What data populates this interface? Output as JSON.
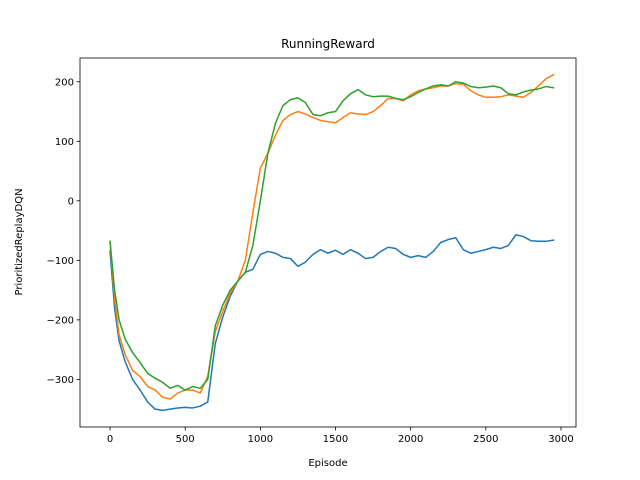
{
  "chart_data": {
    "type": "line",
    "title": "RunningReward",
    "xlabel": "Episode",
    "ylabel": "PrioritizedReplayDQN",
    "xlim": [
      -200,
      3100
    ],
    "ylim": [
      -380,
      240
    ],
    "xticks": [
      0,
      500,
      1000,
      1500,
      2000,
      2500,
      3000
    ],
    "yticks": [
      -300,
      -200,
      -100,
      0,
      100,
      200
    ],
    "xtick_labels": [
      "0",
      "500",
      "1000",
      "1500",
      "2000",
      "2500",
      "3000"
    ],
    "ytick_labels": [
      "−300",
      "−200",
      "−100",
      "0",
      "100",
      "200"
    ],
    "grid": false,
    "series": [
      {
        "color": "#1f77b4",
        "x": [
          0,
          30,
          60,
          100,
          150,
          200,
          250,
          300,
          350,
          400,
          450,
          500,
          550,
          600,
          650,
          700,
          750,
          800,
          850,
          900,
          950,
          1000,
          1050,
          1100,
          1150,
          1200,
          1250,
          1300,
          1350,
          1400,
          1450,
          1500,
          1550,
          1600,
          1650,
          1700,
          1750,
          1800,
          1850,
          1900,
          1950,
          2000,
          2050,
          2100,
          2150,
          2200,
          2250,
          2300,
          2350,
          2400,
          2450,
          2500,
          2550,
          2600,
          2650,
          2700,
          2750,
          2800,
          2850,
          2900,
          2950
        ],
        "y": [
          -85,
          -180,
          -235,
          -270,
          -300,
          -318,
          -338,
          -350,
          -352,
          -350,
          -348,
          -347,
          -348,
          -345,
          -338,
          -240,
          -195,
          -160,
          -135,
          -120,
          -115,
          -90,
          -85,
          -88,
          -95,
          -97,
          -110,
          -103,
          -90,
          -82,
          -88,
          -83,
          -90,
          -82,
          -88,
          -97,
          -95,
          -85,
          -78,
          -80,
          -90,
          -95,
          -92,
          -95,
          -85,
          -70,
          -65,
          -62,
          -82,
          -88,
          -85,
          -82,
          -78,
          -80,
          -75,
          -57,
          -60,
          -67,
          -68,
          -68,
          -66
        ]
      },
      {
        "color": "#ff7f0e",
        "x": [
          0,
          30,
          60,
          100,
          150,
          200,
          250,
          300,
          350,
          400,
          450,
          500,
          550,
          600,
          650,
          700,
          750,
          800,
          850,
          900,
          950,
          1000,
          1050,
          1100,
          1150,
          1200,
          1250,
          1300,
          1350,
          1400,
          1450,
          1500,
          1550,
          1600,
          1650,
          1700,
          1750,
          1800,
          1850,
          1900,
          1950,
          2000,
          2050,
          2100,
          2150,
          2200,
          2250,
          2300,
          2350,
          2400,
          2450,
          2500,
          2550,
          2600,
          2650,
          2700,
          2750,
          2800,
          2850,
          2900,
          2950
        ],
        "y": [
          -70,
          -165,
          -225,
          -258,
          -285,
          -295,
          -312,
          -318,
          -330,
          -333,
          -323,
          -318,
          -318,
          -323,
          -295,
          -220,
          -185,
          -155,
          -135,
          -100,
          -20,
          55,
          80,
          110,
          135,
          145,
          150,
          146,
          140,
          135,
          133,
          131,
          140,
          148,
          146,
          145,
          150,
          160,
          172,
          172,
          168,
          178,
          185,
          188,
          190,
          193,
          193,
          197,
          196,
          185,
          178,
          174,
          174,
          175,
          178,
          176,
          174,
          182,
          193,
          205,
          212
        ]
      },
      {
        "color": "#2ca02c",
        "x": [
          0,
          30,
          60,
          100,
          150,
          200,
          250,
          300,
          350,
          400,
          450,
          500,
          550,
          600,
          650,
          700,
          750,
          800,
          850,
          900,
          950,
          1000,
          1050,
          1100,
          1150,
          1200,
          1250,
          1300,
          1350,
          1400,
          1450,
          1500,
          1550,
          1600,
          1650,
          1700,
          1750,
          1800,
          1850,
          1900,
          1950,
          2000,
          2050,
          2100,
          2150,
          2200,
          2250,
          2300,
          2350,
          2400,
          2450,
          2500,
          2550,
          2600,
          2650,
          2700,
          2750,
          2800,
          2850,
          2900,
          2950
        ],
        "y": [
          -68,
          -150,
          -200,
          -232,
          -255,
          -272,
          -290,
          -298,
          -305,
          -315,
          -310,
          -318,
          -312,
          -315,
          -300,
          -210,
          -175,
          -150,
          -135,
          -120,
          -75,
          0,
          80,
          130,
          160,
          170,
          173,
          165,
          145,
          143,
          148,
          150,
          168,
          180,
          187,
          178,
          175,
          176,
          176,
          172,
          170,
          175,
          182,
          188,
          193,
          195,
          193,
          200,
          198,
          192,
          190,
          191,
          193,
          190,
          180,
          178,
          183,
          186,
          188,
          192,
          190
        ]
      }
    ]
  }
}
